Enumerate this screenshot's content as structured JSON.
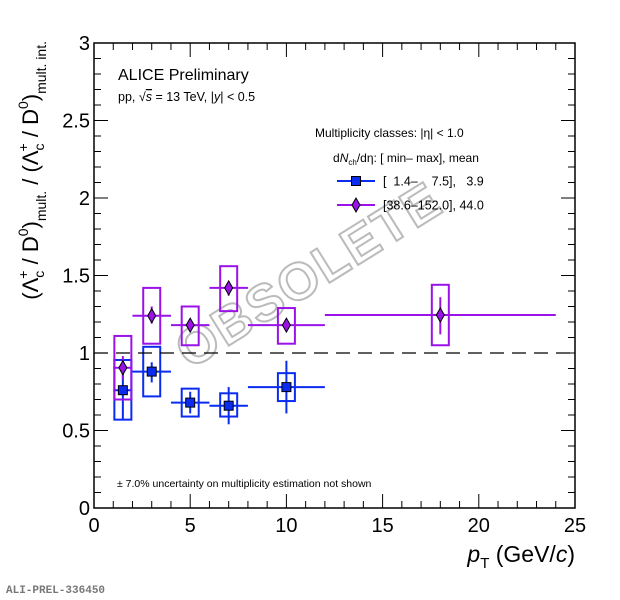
{
  "chart_data": {
    "type": "scatter",
    "title": "",
    "header": "ALICE Preliminary",
    "subheader": {
      "pre": "pp, ",
      "sqrt": "√",
      "s": "s",
      "mid": " = 13 TeV, |",
      "y": "y",
      "post": "| < 0.5"
    },
    "xlabel": {
      "main": "p",
      "sub": "T",
      "unit_pre": " (GeV/",
      "unit_c": "c",
      "unit_post": ")"
    },
    "ylabel": {
      "open": "(Λ",
      "c_sub": "c",
      "plus_sup": "+",
      "slash": " / D",
      "zero_sup": "0",
      "close": ")",
      "mult": "mult.",
      "sep": " / (Λ",
      "mult_int": "mult. int."
    },
    "xlim": [
      0,
      25
    ],
    "ylim": [
      0,
      3
    ],
    "xticks": [
      "0",
      "5",
      "10",
      "15",
      "20",
      "25"
    ],
    "yticks": [
      "0",
      "0.5",
      "1",
      "1.5",
      "2",
      "2.5",
      "3"
    ],
    "reference_line": 1,
    "legend": {
      "placement": "top-right",
      "title": "Multiplicity classes: |η| < 1.0",
      "subtitle": "dNch/dη: [ min–   max], mean",
      "subtitle_parts": {
        "d": "d",
        "N": "N",
        "ch": "ch",
        "deta": "/dη: [ min–   max], mean"
      }
    },
    "series": [
      {
        "name": "[  1.4–    7.5],   3.9",
        "color": "#0a2cf0",
        "marker": "square",
        "points": [
          {
            "x": 1.5,
            "xlo": 1,
            "xhi": 2,
            "y": 0.76,
            "stat": [
              0.57,
              0.95
            ],
            "syst": [
              0.57,
              0.955
            ]
          },
          {
            "x": 3,
            "xlo": 2,
            "xhi": 4,
            "y": 0.88,
            "stat": [
              0.81,
              0.94
            ],
            "syst": [
              0.72,
              1.04
            ]
          },
          {
            "x": 5,
            "xlo": 4,
            "xhi": 6,
            "y": 0.68,
            "stat": [
              0.61,
              0.75
            ],
            "syst": [
              0.59,
              0.77
            ]
          },
          {
            "x": 7,
            "xlo": 6,
            "xhi": 8,
            "y": 0.66,
            "stat": [
              0.54,
              0.78
            ],
            "syst": [
              0.59,
              0.74
            ]
          },
          {
            "x": 10,
            "xlo": 8,
            "xhi": 12,
            "y": 0.78,
            "stat": [
              0.61,
              0.95
            ],
            "syst": [
              0.69,
              0.87
            ]
          }
        ]
      },
      {
        "name": "[38.6–152.0], 44.0",
        "color": "#9a12e8",
        "marker": "diamond",
        "points": [
          {
            "x": 1.5,
            "xlo": 1,
            "xhi": 2,
            "y": 0.905,
            "stat": [
              0.83,
              0.98
            ],
            "syst": [
              0.7,
              1.11
            ]
          },
          {
            "x": 3,
            "xlo": 2,
            "xhi": 4,
            "y": 1.24,
            "stat": [
              1.19,
              1.3
            ],
            "syst": [
              1.06,
              1.42
            ]
          },
          {
            "x": 5,
            "xlo": 4,
            "xhi": 6,
            "y": 1.18,
            "stat": [
              1.14,
              1.22
            ],
            "syst": [
              1.05,
              1.3
            ]
          },
          {
            "x": 7,
            "xlo": 6,
            "xhi": 8,
            "y": 1.42,
            "stat": [
              1.37,
              1.46
            ],
            "syst": [
              1.27,
              1.56
            ]
          },
          {
            "x": 10,
            "xlo": 8,
            "xhi": 12,
            "y": 1.18,
            "stat": [
              1.15,
              1.21
            ],
            "syst": [
              1.06,
              1.29
            ]
          },
          {
            "x": 18,
            "xlo": 12,
            "xhi": 24,
            "y": 1.245,
            "stat": [
              1.12,
              1.36
            ],
            "syst": [
              1.05,
              1.44
            ]
          }
        ]
      }
    ],
    "annotation": "± 7.0% uncertainty on multiplicity estimation not shown",
    "watermark": "OBSOLETE",
    "figure_id": "ALI-PREL-336450"
  }
}
